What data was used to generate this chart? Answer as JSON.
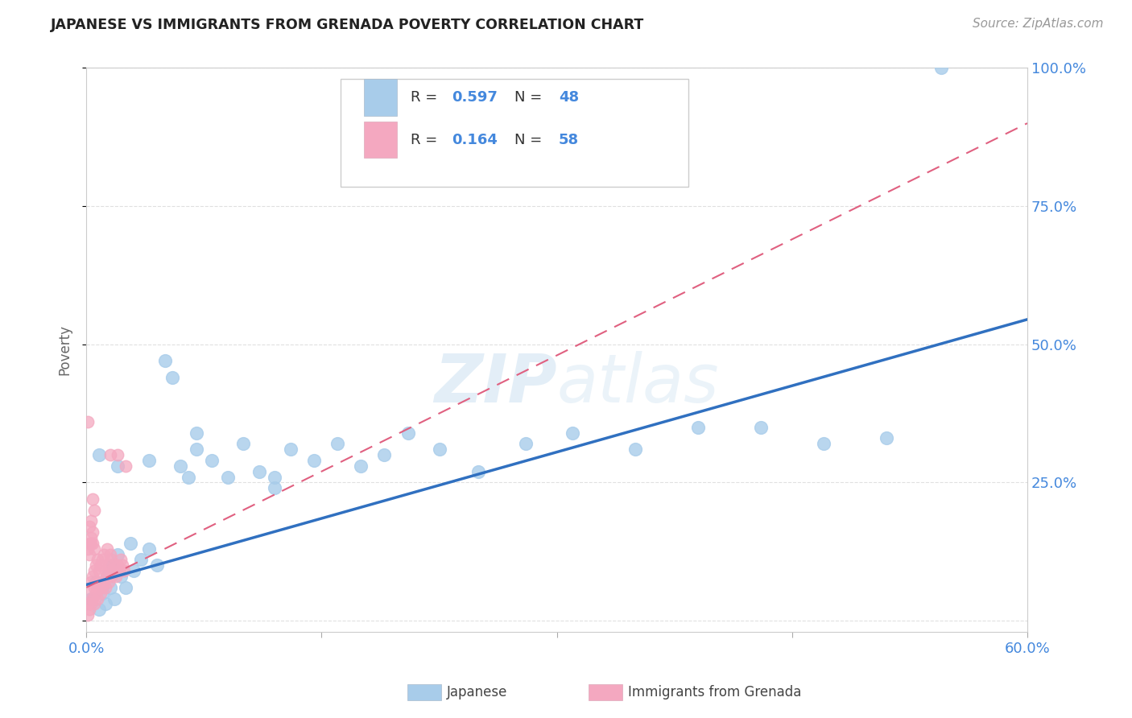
{
  "title": "JAPANESE VS IMMIGRANTS FROM GRENADA POVERTY CORRELATION CHART",
  "source": "Source: ZipAtlas.com",
  "ylabel": "Poverty",
  "xlim": [
    0,
    0.6
  ],
  "ylim": [
    0,
    1.0
  ],
  "blue_R": 0.597,
  "blue_N": 48,
  "pink_R": 0.164,
  "pink_N": 58,
  "blue_color": "#A8CCEA",
  "pink_color": "#F4A8C0",
  "blue_line_color": "#3070C0",
  "pink_line_color": "#E06080",
  "watermark_zip": "ZIP",
  "watermark_atlas": "atlas",
  "legend_label_blue": "Japanese",
  "legend_label_pink": "Immigrants from Grenada",
  "blue_x": [
    0.003,
    0.006,
    0.008,
    0.01,
    0.012,
    0.013,
    0.015,
    0.017,
    0.018,
    0.02,
    0.022,
    0.025,
    0.028,
    0.03,
    0.035,
    0.04,
    0.045,
    0.05,
    0.055,
    0.06,
    0.065,
    0.07,
    0.08,
    0.09,
    0.1,
    0.11,
    0.12,
    0.13,
    0.145,
    0.16,
    0.175,
    0.19,
    0.205,
    0.225,
    0.25,
    0.28,
    0.31,
    0.35,
    0.39,
    0.43,
    0.47,
    0.51,
    0.545,
    0.008,
    0.02,
    0.04,
    0.07,
    0.12
  ],
  "blue_y": [
    0.04,
    0.07,
    0.02,
    0.05,
    0.03,
    0.08,
    0.06,
    0.1,
    0.04,
    0.12,
    0.08,
    0.06,
    0.14,
    0.09,
    0.11,
    0.13,
    0.1,
    0.47,
    0.44,
    0.28,
    0.26,
    0.31,
    0.29,
    0.26,
    0.32,
    0.27,
    0.24,
    0.31,
    0.29,
    0.32,
    0.28,
    0.3,
    0.34,
    0.31,
    0.27,
    0.32,
    0.34,
    0.31,
    0.35,
    0.35,
    0.32,
    0.33,
    1.0,
    0.3,
    0.28,
    0.29,
    0.34,
    0.26
  ],
  "pink_x": [
    0.001,
    0.001,
    0.002,
    0.002,
    0.003,
    0.003,
    0.004,
    0.004,
    0.005,
    0.005,
    0.005,
    0.006,
    0.006,
    0.007,
    0.007,
    0.007,
    0.008,
    0.008,
    0.009,
    0.009,
    0.01,
    0.01,
    0.011,
    0.011,
    0.012,
    0.012,
    0.013,
    0.013,
    0.014,
    0.014,
    0.015,
    0.015,
    0.016,
    0.016,
    0.017,
    0.018,
    0.019,
    0.02,
    0.021,
    0.022,
    0.023,
    0.024,
    0.001,
    0.002,
    0.003,
    0.004,
    0.002,
    0.003,
    0.004,
    0.005,
    0.001,
    0.002,
    0.003,
    0.004,
    0.005,
    0.015,
    0.02,
    0.025
  ],
  "pink_y": [
    0.01,
    0.03,
    0.02,
    0.05,
    0.03,
    0.07,
    0.04,
    0.08,
    0.03,
    0.06,
    0.09,
    0.05,
    0.1,
    0.04,
    0.07,
    0.11,
    0.06,
    0.09,
    0.05,
    0.1,
    0.06,
    0.11,
    0.07,
    0.12,
    0.06,
    0.09,
    0.08,
    0.13,
    0.07,
    0.1,
    0.09,
    0.12,
    0.08,
    0.11,
    0.09,
    0.1,
    0.08,
    0.1,
    0.09,
    0.11,
    0.1,
    0.09,
    0.13,
    0.14,
    0.14,
    0.16,
    0.12,
    0.15,
    0.14,
    0.13,
    0.36,
    0.17,
    0.18,
    0.22,
    0.2,
    0.3,
    0.3,
    0.28
  ],
  "blue_line_x0": 0.0,
  "blue_line_y0": 0.065,
  "blue_line_x1": 0.6,
  "blue_line_y1": 0.545,
  "pink_line_x0": 0.0,
  "pink_line_y0": 0.06,
  "pink_line_x1": 0.6,
  "pink_line_y1": 0.9,
  "background_color": "#FFFFFF",
  "grid_color": "#E0E0E0"
}
